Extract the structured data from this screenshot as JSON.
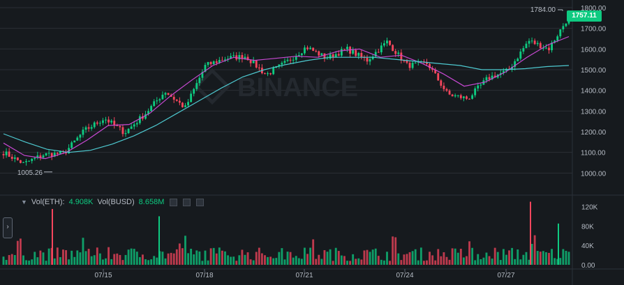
{
  "chart_data": [
    {
      "type": "candlestick",
      "title": "",
      "ylim": [
        900,
        1810
      ],
      "y_ticks": [
        "1800.00",
        "1700.00",
        "1600.00",
        "1500.00",
        "1400.00",
        "1300.00",
        "1200.00",
        "1100.00",
        "1000.00"
      ],
      "x_ticks": [
        "07/15",
        "07/18",
        "07/21",
        "07/24",
        "07/27"
      ],
      "high_label": "1784.00",
      "low_label": "1005.26",
      "last_price": "1757.11",
      "watermark": "BINANCE",
      "series": [
        {
          "values_at_anchors": [
            1100,
            1045,
            1090,
            1095,
            1205,
            1265,
            1195,
            1285,
            1395,
            1315,
            1520,
            1555,
            1565,
            1475,
            1535,
            1610,
            1555,
            1600,
            1545,
            1635,
            1520,
            1530,
            1380,
            1360,
            1460,
            1495,
            1640,
            1600,
            1757
          ]
        },
        {
          "name": "",
          "values_at_anchors": [
            1145,
            1085,
            1070,
            1100,
            1160,
            1230,
            1235,
            1290,
            1375,
            1450,
            1520,
            1560,
            1545,
            1555,
            1565,
            1560,
            1590,
            1600,
            1560,
            1570,
            1530,
            1480,
            1420,
            1440,
            1490,
            1560,
            1620,
            1660
          ]
        },
        {
          "name": "",
          "values_at_anchors": [
            1190,
            1150,
            1115,
            1100,
            1110,
            1140,
            1180,
            1230,
            1290,
            1350,
            1410,
            1465,
            1500,
            1525,
            1545,
            1560,
            1560,
            1560,
            1550,
            1540,
            1530,
            1520,
            1500,
            1500,
            1505,
            1515,
            1520
          ]
        }
      ]
    },
    {
      "type": "bar",
      "title": "",
      "legend": [
        {
          "label": "Vol(ETH):",
          "value": "4.908K"
        },
        {
          "label": "Vol(BUSD)",
          "value": "8.658M"
        }
      ],
      "y_ticks": [
        "120K",
        "80K",
        "40K",
        "0.00"
      ],
      "ylim": [
        0,
        135000
      ],
      "notable_bars": [
        {
          "date": "07/14",
          "value": 115000
        },
        {
          "date": "07/16",
          "value": 100000
        },
        {
          "date": "07/27",
          "value": 130000
        },
        {
          "date": "07/27",
          "value": 85000
        }
      ]
    }
  ],
  "ui": {
    "side_tab_label": "›",
    "vol_toggle_caret": "▼"
  }
}
